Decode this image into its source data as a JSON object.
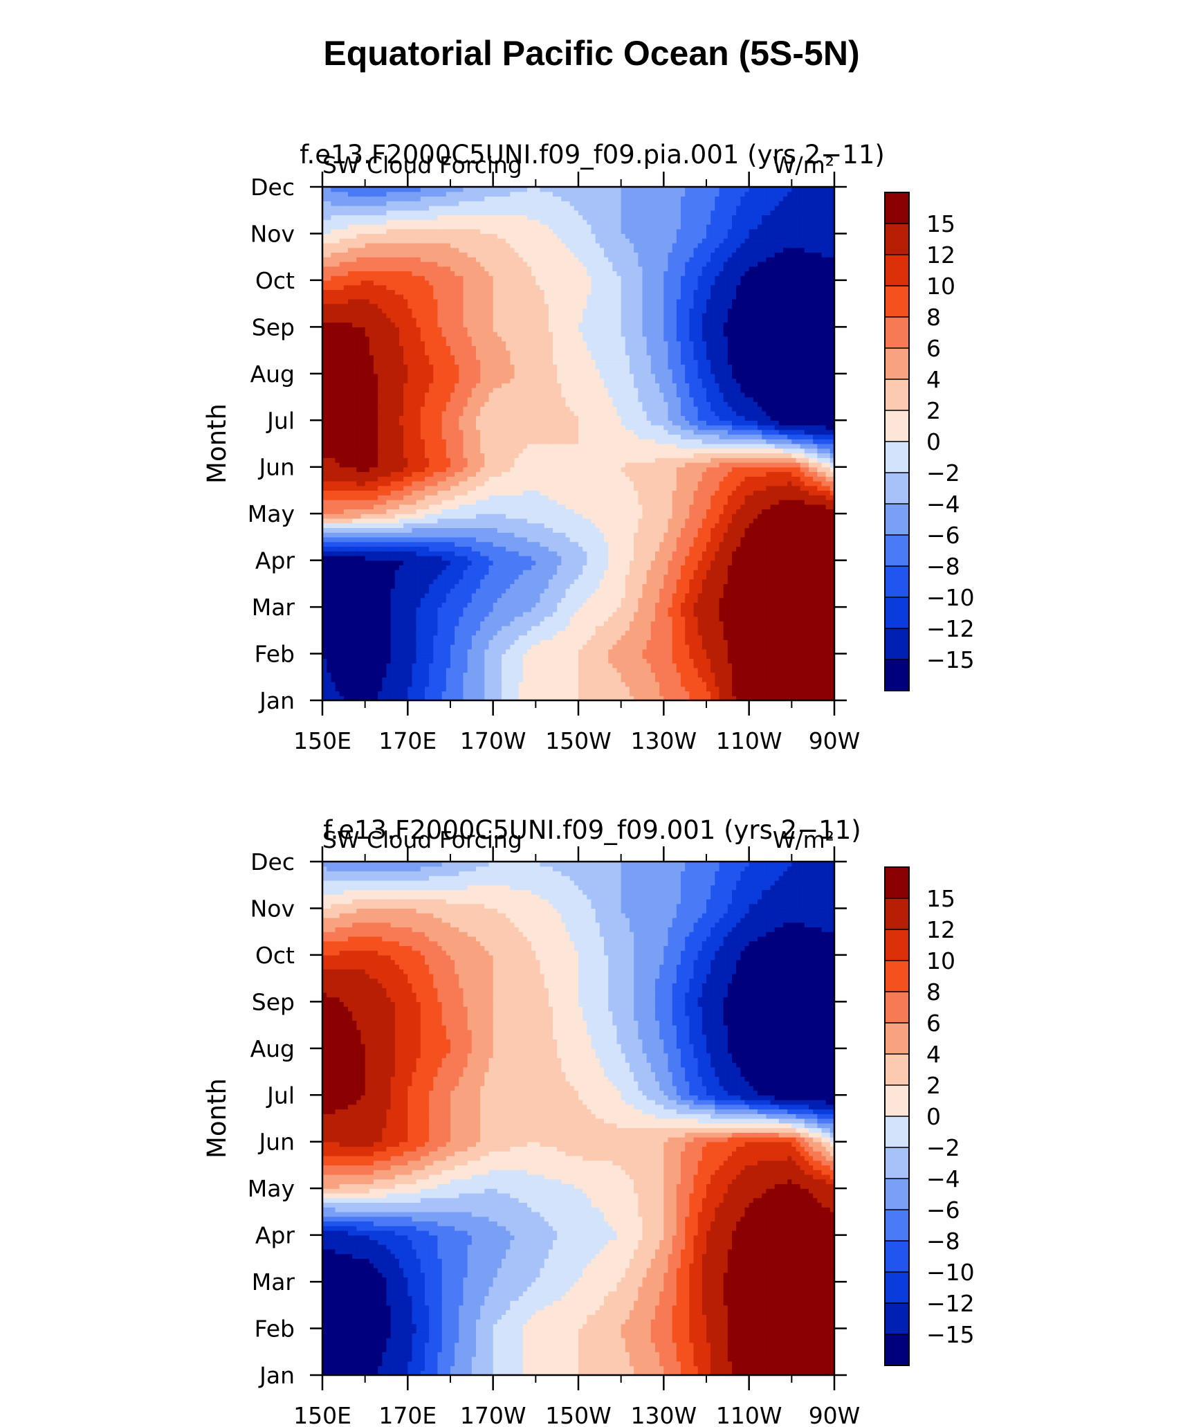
{
  "page": {
    "title": "Equatorial Pacific Ocean (5S-5N)"
  },
  "colors": {
    "levels_fill": [
      "#00007f",
      "#001fb3",
      "#0a3bdc",
      "#2155f0",
      "#4a7af5",
      "#7aa0f6",
      "#a6c2f8",
      "#d2e3fb",
      "#fde6d8",
      "#fbcab0",
      "#f9a27f",
      "#f87a54",
      "#f5511f",
      "#dc3108",
      "#b81e04",
      "#8b0000"
    ]
  },
  "chart_data": [
    {
      "type": "heatmap",
      "title": "f.e13.F2000C5UNI.f09_f09.pia.001 (yrs 2−11)",
      "left_label": "SW Cloud Forcing",
      "right_label": "W/m²",
      "ylabel": "Month",
      "xlabel": "",
      "x_ticks": [
        "150E",
        "170E",
        "170W",
        "150W",
        "130W",
        "110W",
        "90W"
      ],
      "x_lon": [
        150,
        170,
        190,
        210,
        230,
        250,
        270
      ],
      "xlim": [
        150,
        270
      ],
      "y_ticks": [
        "Jan",
        "Feb",
        "Mar",
        "Apr",
        "May",
        "Jun",
        "Jul",
        "Aug",
        "Sep",
        "Oct",
        "Nov",
        "Dec"
      ],
      "colorbar_labels": [
        "15",
        "12",
        "10",
        "8",
        "6",
        "4",
        "2",
        "0",
        "−2",
        "−4",
        "−6",
        "−8",
        "−10",
        "−12",
        "−15"
      ],
      "levels": [
        -15,
        -12,
        -10,
        -8,
        -6,
        -4,
        -2,
        0,
        2,
        4,
        6,
        8,
        10,
        12,
        15
      ],
      "grid_lon": [
        150,
        160,
        170,
        180,
        190,
        200,
        210,
        220,
        230,
        240,
        250,
        260,
        270
      ],
      "values": [
        [
          -14,
          -16,
          -12,
          -7,
          -3,
          2,
          2,
          3,
          6,
          9,
          18,
          20,
          19
        ],
        [
          -15,
          -18,
          -13,
          -8,
          -3,
          1,
          2,
          5,
          7,
          12,
          18,
          20,
          19
        ],
        [
          -18,
          -18,
          -13,
          -9,
          -6,
          -4,
          0,
          2,
          7,
          14,
          18,
          20,
          19
        ],
        [
          -18,
          -16,
          -15,
          -12,
          -8,
          -6,
          -3,
          1,
          5,
          11,
          18,
          20,
          19
        ],
        [
          6,
          5,
          2,
          -1,
          -2,
          -1,
          0,
          1,
          3,
          8,
          14,
          18,
          17
        ],
        [
          14,
          16,
          12,
          8,
          3,
          1,
          2,
          2,
          3,
          6,
          9,
          9,
          0
        ],
        [
          18,
          17,
          11,
          7,
          2,
          3,
          2,
          0,
          -3,
          -9,
          -12,
          -18,
          -18
        ],
        [
          18,
          16,
          12,
          9,
          5,
          3,
          1,
          -1,
          -5,
          -11,
          -18,
          -20,
          -20
        ],
        [
          16,
          15,
          11,
          7,
          4,
          3,
          0,
          -2,
          -6,
          -13,
          -18,
          -20,
          -20
        ],
        [
          8,
          10,
          9,
          7,
          4,
          2,
          1,
          -2,
          -6,
          -11,
          -16,
          -18,
          -18
        ],
        [
          0,
          2,
          3,
          3,
          2,
          1,
          -1,
          -4,
          -5,
          -8,
          -12,
          -14,
          -12
        ],
        [
          -6,
          -8,
          -7,
          -5,
          -3,
          -2,
          -3,
          -4,
          -5,
          -7,
          -10,
          -12,
          -12
        ]
      ]
    },
    {
      "type": "heatmap",
      "title": "f.e13.F2000C5UNI.f09_f09.001 (yrs 2−11)",
      "left_label": "SW Cloud Forcing",
      "right_label": "W/m²",
      "ylabel": "Month",
      "xlabel": "",
      "x_ticks": [
        "150E",
        "170E",
        "170W",
        "150W",
        "130W",
        "110W",
        "90W"
      ],
      "x_lon": [
        150,
        170,
        190,
        210,
        230,
        250,
        270
      ],
      "xlim": [
        150,
        270
      ],
      "y_ticks": [
        "Jan",
        "Feb",
        "Mar",
        "Apr",
        "May",
        "Jun",
        "Jul",
        "Aug",
        "Sep",
        "Oct",
        "Nov",
        "Dec"
      ],
      "colorbar_labels": [
        "15",
        "12",
        "10",
        "8",
        "6",
        "4",
        "2",
        "0",
        "−2",
        "−4",
        "−6",
        "−8",
        "−10",
        "−12",
        "−15"
      ],
      "levels": [
        -15,
        -12,
        -10,
        -8,
        -6,
        -4,
        -2,
        0,
        2,
        4,
        6,
        8,
        10,
        12,
        15
      ],
      "grid_lon": [
        150,
        160,
        170,
        180,
        190,
        200,
        210,
        220,
        230,
        240,
        250,
        260,
        270
      ],
      "values": [
        [
          -16,
          -16,
          -12,
          -6,
          -2,
          1,
          2,
          3,
          6,
          11,
          18,
          20,
          19
        ],
        [
          -16,
          -18,
          -13,
          -7,
          -2,
          1,
          2,
          4,
          7,
          12,
          18,
          20,
          19
        ],
        [
          -18,
          -18,
          -12,
          -7,
          -4,
          -2,
          0,
          2,
          6,
          13,
          18,
          20,
          19
        ],
        [
          -14,
          -12,
          -10,
          -7,
          -5,
          -3,
          -1,
          0,
          4,
          12,
          17,
          18,
          17
        ],
        [
          4,
          3,
          1,
          -1,
          -2,
          -1,
          0,
          1,
          4,
          10,
          14,
          16,
          13
        ],
        [
          12,
          13,
          10,
          6,
          3,
          2,
          3,
          3,
          4,
          8,
          10,
          10,
          0
        ],
        [
          17,
          15,
          10,
          6,
          3,
          3,
          2,
          0,
          -4,
          -10,
          -14,
          -18,
          -18
        ],
        [
          18,
          15,
          11,
          8,
          4,
          3,
          1,
          -2,
          -6,
          -12,
          -18,
          -20,
          -20
        ],
        [
          16,
          14,
          11,
          7,
          4,
          3,
          0,
          -3,
          -7,
          -13,
          -18,
          -20,
          -20
        ],
        [
          10,
          11,
          9,
          6,
          4,
          2,
          0,
          -3,
          -6,
          -11,
          -16,
          -18,
          -18
        ],
        [
          2,
          4,
          4,
          3,
          2,
          1,
          -1,
          -4,
          -5,
          -8,
          -12,
          -14,
          -12
        ],
        [
          -5,
          -6,
          -6,
          -4,
          -2,
          -2,
          -3,
          -4,
          -5,
          -7,
          -10,
          -12,
          -12
        ]
      ]
    }
  ]
}
